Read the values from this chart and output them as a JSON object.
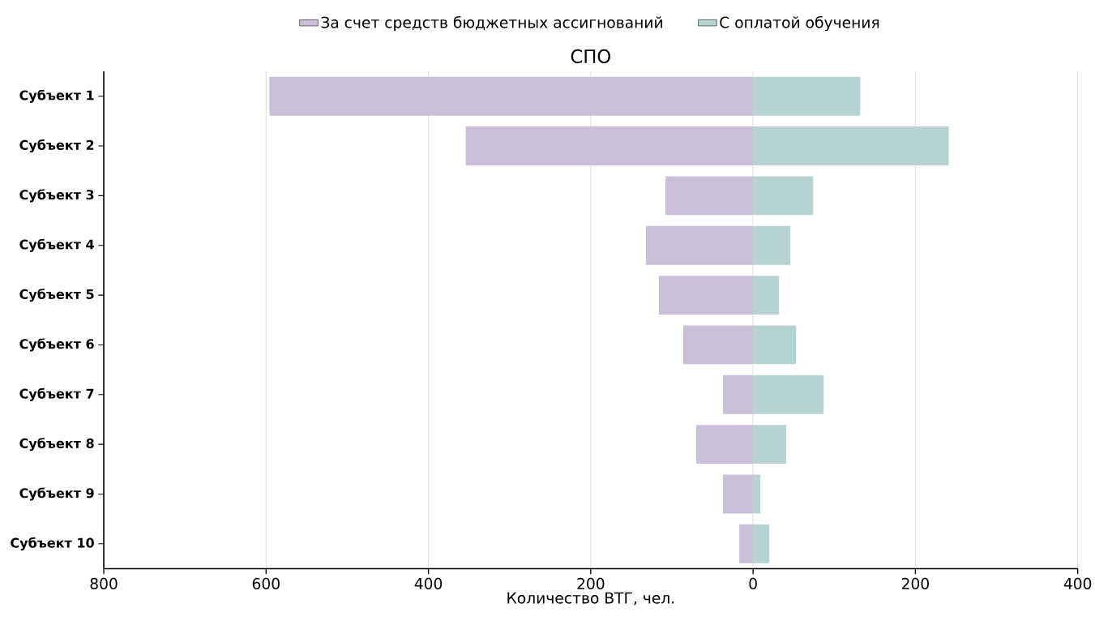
{
  "chart_data": {
    "type": "bar",
    "orientation": "horizontal",
    "title": "СПО",
    "xlabel": "Количество ВТГ, чел.",
    "categories": [
      "Субъект 1",
      "Субъект 2",
      "Субъект 3",
      "Субъект 4",
      "Субъект 5",
      "Субъект 6",
      "Субъект 7",
      "Субъект 8",
      "Субъект 9",
      "Субъект 10"
    ],
    "series": [
      {
        "name": "За счет средств бюджетных ассигнований",
        "color": "#c9bfd9",
        "values": [
          -596,
          -354,
          -108,
          -132,
          -116,
          -86,
          -37,
          -70,
          -37,
          -17
        ]
      },
      {
        "name": "С оплатой обучения",
        "color": "#b7d3d1",
        "values": [
          132,
          241,
          74,
          46,
          32,
          53,
          87,
          41,
          9,
          20
        ]
      }
    ],
    "xlim": [
      -800,
      400
    ],
    "xticks": [
      {
        "value": -800,
        "label": "800"
      },
      {
        "value": -600,
        "label": "600"
      },
      {
        "value": -400,
        "label": "400"
      },
      {
        "value": -200,
        "label": "200"
      },
      0,
      200,
      400
    ],
    "stacked": true,
    "grid": "x",
    "legend": "top"
  }
}
